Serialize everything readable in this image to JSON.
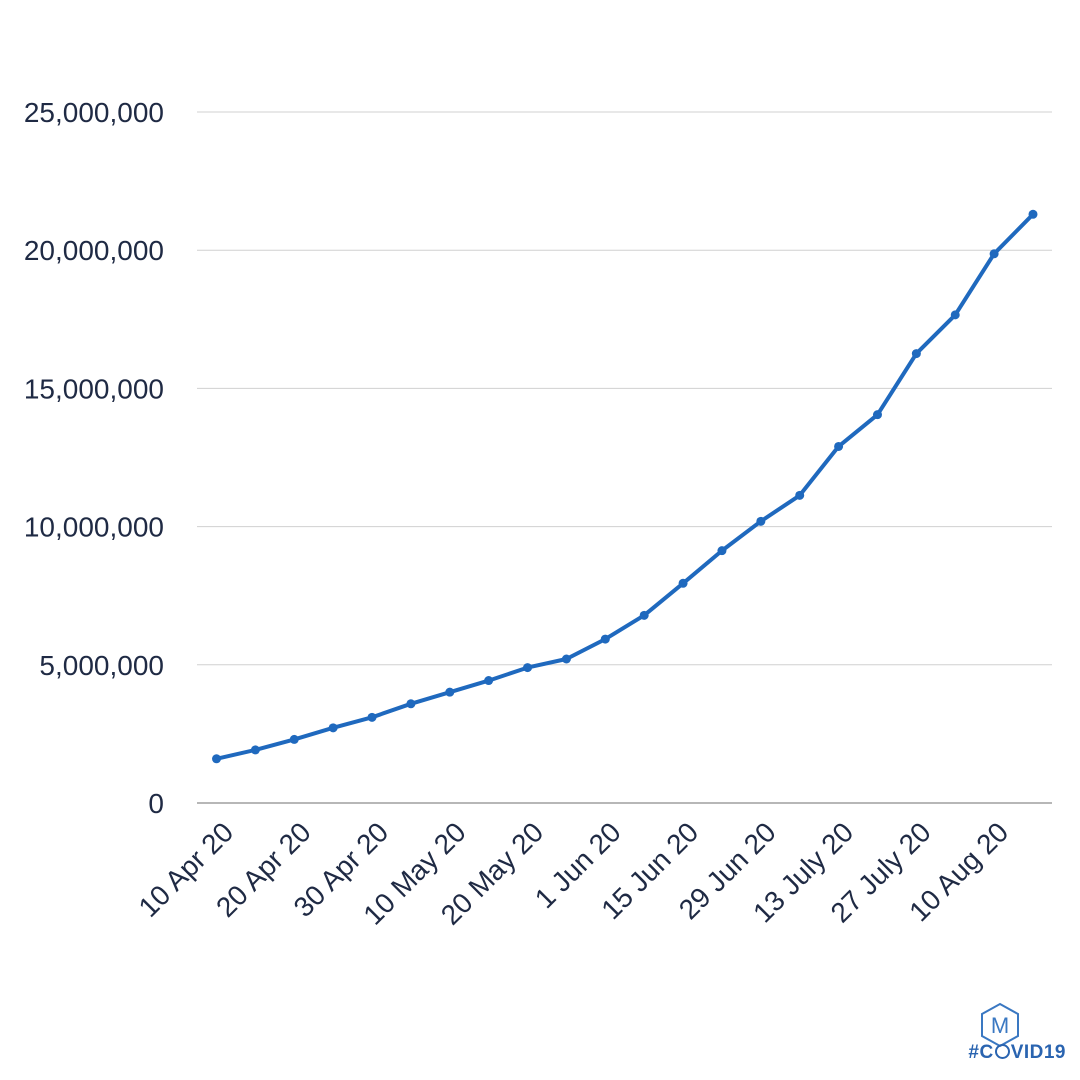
{
  "chart_data": {
    "type": "line",
    "title": "",
    "xlabel": "",
    "ylabel": "",
    "ylim": [
      0,
      25000000
    ],
    "yticks": [
      0,
      5000000,
      10000000,
      15000000,
      20000000,
      25000000
    ],
    "ytick_labels": [
      "0",
      "5,000,000",
      "10,000,000",
      "15,000,000",
      "20,000,000",
      "25,000,000"
    ],
    "xtick_labels": [
      "10 Apr 20",
      "20 Apr 20",
      "30 Apr 20",
      "10 May 20",
      "20 May 20",
      "1 Jun 20",
      "15 Jun 20",
      "29 Jun 20",
      "13 July 20",
      "27 July 20",
      "10 Aug 20"
    ],
    "grid": true,
    "legend": "none",
    "series": [
      {
        "values": [
          1600000,
          1920000,
          2300000,
          2720000,
          3100000,
          3590000,
          4010000,
          4430000,
          4900000,
          5210000,
          5930000,
          6790000,
          7950000,
          9130000,
          10190000,
          11130000,
          12900000,
          14050000,
          16260000,
          17660000,
          19870000,
          21300000
        ]
      }
    ],
    "line_color": "#1f69be"
  },
  "branding": {
    "logo_letter": "M",
    "hashtag_prefix": "#C",
    "hashtag_suffix": "VID19",
    "logo_color": "#3a78c2",
    "hashtag_color": "#2a64b0"
  }
}
